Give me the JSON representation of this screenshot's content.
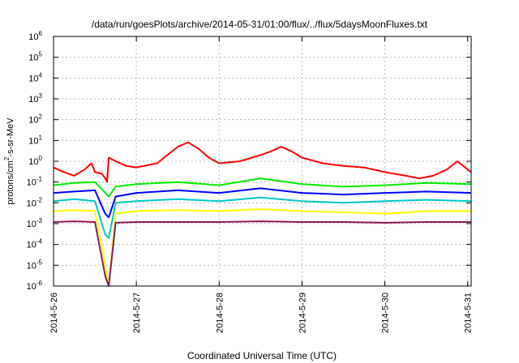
{
  "chart_data": {
    "type": "line",
    "title": "/data/run/goesPlots/archive/2014-05-31/01:00/flux/../flux/5daysMoonFluxes.txt",
    "xlabel": "Coordinated Universal Time (UTC)",
    "ylabel_parts": [
      "protons/cm",
      "2",
      "-s-sr-MeV"
    ],
    "y_scale": "log",
    "ylim": [
      1e-06,
      1000000.0
    ],
    "y_ticks": [
      {
        "base": "10",
        "exp": "-6",
        "value": 1e-06
      },
      {
        "base": "10",
        "exp": "-5",
        "value": 1e-05
      },
      {
        "base": "10",
        "exp": "-4",
        "value": 0.0001
      },
      {
        "base": "10",
        "exp": "-3",
        "value": 0.001
      },
      {
        "base": "10",
        "exp": "-2",
        "value": 0.01
      },
      {
        "base": "10",
        "exp": "-1",
        "value": 0.1
      },
      {
        "base": "10",
        "exp": "0",
        "value": 1
      },
      {
        "base": "10",
        "exp": "1",
        "value": 10
      },
      {
        "base": "10",
        "exp": "2",
        "value": 100
      },
      {
        "base": "10",
        "exp": "3",
        "value": 1000
      },
      {
        "base": "10",
        "exp": "4",
        "value": 10000
      },
      {
        "base": "10",
        "exp": "5",
        "value": 100000
      },
      {
        "base": "10",
        "exp": "6",
        "value": 1000000
      }
    ],
    "x_ticks": [
      "2014-5-26",
      "2014-5-27",
      "2014-5-28",
      "2014-5-29",
      "2014-5-30",
      "2014-5-31"
    ],
    "xlim": [
      "2014-05-26T00:00",
      "2014-05-31T01:00"
    ],
    "grid": true,
    "series": [
      {
        "color": "#ff0000",
        "points": [
          [
            "2014-05-26T00:00",
            0.5
          ],
          [
            "2014-05-26T03:00",
            0.3
          ],
          [
            "2014-05-26T06:00",
            0.2
          ],
          [
            "2014-05-26T09:00",
            0.4
          ],
          [
            "2014-05-26T11:00",
            0.8
          ],
          [
            "2014-05-26T12:00",
            0.3
          ],
          [
            "2014-05-26T14:00",
            0.25
          ],
          [
            "2014-05-26T15:00",
            0.15
          ],
          [
            "2014-05-26T15:30",
            0.1
          ],
          [
            "2014-05-26T16:00",
            1.5
          ],
          [
            "2014-05-26T18:00",
            1.0
          ],
          [
            "2014-05-26T21:00",
            0.6
          ],
          [
            "2014-05-27T00:00",
            0.5
          ],
          [
            "2014-05-27T06:00",
            0.8
          ],
          [
            "2014-05-27T09:00",
            2.0
          ],
          [
            "2014-05-27T12:00",
            5.0
          ],
          [
            "2014-05-27T15:00",
            8.0
          ],
          [
            "2014-05-27T18:00",
            4.0
          ],
          [
            "2014-05-27T21:00",
            1.5
          ],
          [
            "2014-05-28T00:00",
            0.8
          ],
          [
            "2014-05-28T06:00",
            1.0
          ],
          [
            "2014-05-28T12:00",
            2.0
          ],
          [
            "2014-05-28T15:00",
            3.0
          ],
          [
            "2014-05-28T18:00",
            5.0
          ],
          [
            "2014-05-28T21:00",
            3.0
          ],
          [
            "2014-05-29T00:00",
            1.5
          ],
          [
            "2014-05-29T06:00",
            0.8
          ],
          [
            "2014-05-29T12:00",
            0.6
          ],
          [
            "2014-05-29T18:00",
            0.5
          ],
          [
            "2014-05-30T00:00",
            0.3
          ],
          [
            "2014-05-30T06:00",
            0.2
          ],
          [
            "2014-05-30T10:00",
            0.15
          ],
          [
            "2014-05-30T14:00",
            0.2
          ],
          [
            "2014-05-30T18:00",
            0.4
          ],
          [
            "2014-05-30T21:00",
            1.0
          ],
          [
            "2014-05-31T00:00",
            0.4
          ],
          [
            "2014-05-31T01:00",
            0.3
          ]
        ]
      },
      {
        "color": "#00ee00",
        "points": [
          [
            "2014-05-26T00:00",
            0.07
          ],
          [
            "2014-05-26T06:00",
            0.09
          ],
          [
            "2014-05-26T12:00",
            0.1
          ],
          [
            "2014-05-26T15:00",
            0.03
          ],
          [
            "2014-05-26T16:00",
            0.02
          ],
          [
            "2014-05-26T18:00",
            0.06
          ],
          [
            "2014-05-27T00:00",
            0.08
          ],
          [
            "2014-05-27T12:00",
            0.1
          ],
          [
            "2014-05-28T00:00",
            0.07
          ],
          [
            "2014-05-28T12:00",
            0.15
          ],
          [
            "2014-05-29T00:00",
            0.08
          ],
          [
            "2014-05-29T12:00",
            0.06
          ],
          [
            "2014-05-30T00:00",
            0.07
          ],
          [
            "2014-05-30T12:00",
            0.09
          ],
          [
            "2014-05-31T01:00",
            0.08
          ]
        ]
      },
      {
        "color": "#0000ff",
        "points": [
          [
            "2014-05-26T00:00",
            0.03
          ],
          [
            "2014-05-26T06:00",
            0.035
          ],
          [
            "2014-05-26T12:00",
            0.04
          ],
          [
            "2014-05-26T15:00",
            0.003
          ],
          [
            "2014-05-26T16:00",
            0.002
          ],
          [
            "2014-05-26T18:00",
            0.02
          ],
          [
            "2014-05-27T00:00",
            0.03
          ],
          [
            "2014-05-27T12:00",
            0.04
          ],
          [
            "2014-05-28T00:00",
            0.03
          ],
          [
            "2014-05-28T12:00",
            0.05
          ],
          [
            "2014-05-29T00:00",
            0.03
          ],
          [
            "2014-05-29T12:00",
            0.025
          ],
          [
            "2014-05-30T00:00",
            0.03
          ],
          [
            "2014-05-30T12:00",
            0.035
          ],
          [
            "2014-05-31T01:00",
            0.03
          ]
        ]
      },
      {
        "color": "#00c8c8",
        "points": [
          [
            "2014-05-26T00:00",
            0.012
          ],
          [
            "2014-05-26T06:00",
            0.015
          ],
          [
            "2014-05-26T12:00",
            0.012
          ],
          [
            "2014-05-26T15:00",
            0.0003
          ],
          [
            "2014-05-26T16:00",
            0.0002
          ],
          [
            "2014-05-26T18:00",
            0.01
          ],
          [
            "2014-05-27T00:00",
            0.012
          ],
          [
            "2014-05-27T12:00",
            0.015
          ],
          [
            "2014-05-28T00:00",
            0.012
          ],
          [
            "2014-05-28T12:00",
            0.018
          ],
          [
            "2014-05-29T00:00",
            0.012
          ],
          [
            "2014-05-29T12:00",
            0.01
          ],
          [
            "2014-05-30T00:00",
            0.012
          ],
          [
            "2014-05-30T12:00",
            0.014
          ],
          [
            "2014-05-31T01:00",
            0.012
          ]
        ]
      },
      {
        "color": "#ffff00",
        "points": [
          [
            "2014-05-26T00:00",
            0.004
          ],
          [
            "2014-05-26T06:00",
            0.0045
          ],
          [
            "2014-05-26T12:00",
            0.004
          ],
          [
            "2014-05-26T15:00",
            1e-05
          ],
          [
            "2014-05-26T16:00",
            1e-06
          ],
          [
            "2014-05-26T18:00",
            0.003
          ],
          [
            "2014-05-27T00:00",
            0.004
          ],
          [
            "2014-05-27T12:00",
            0.0045
          ],
          [
            "2014-05-28T00:00",
            0.004
          ],
          [
            "2014-05-28T12:00",
            0.005
          ],
          [
            "2014-05-29T00:00",
            0.004
          ],
          [
            "2014-05-29T12:00",
            0.0035
          ],
          [
            "2014-05-30T00:00",
            0.003
          ],
          [
            "2014-05-30T12:00",
            0.004
          ],
          [
            "2014-05-31T01:00",
            0.004
          ]
        ]
      },
      {
        "color": "#8b1a5a",
        "points": [
          [
            "2014-05-26T00:00",
            0.0012
          ],
          [
            "2014-05-26T06:00",
            0.0013
          ],
          [
            "2014-05-26T12:00",
            0.0012
          ],
          [
            "2014-05-26T15:00",
            3e-06
          ],
          [
            "2014-05-26T16:00",
            1e-06
          ],
          [
            "2014-05-26T18:00",
            0.0011
          ],
          [
            "2014-05-27T00:00",
            0.0012
          ],
          [
            "2014-05-27T12:00",
            0.0012
          ],
          [
            "2014-05-28T00:00",
            0.0012
          ],
          [
            "2014-05-28T12:00",
            0.0013
          ],
          [
            "2014-05-29T00:00",
            0.0012
          ],
          [
            "2014-05-29T12:00",
            0.0012
          ],
          [
            "2014-05-30T00:00",
            0.0011
          ],
          [
            "2014-05-30T12:00",
            0.0012
          ],
          [
            "2014-05-31T01:00",
            0.0012
          ]
        ]
      }
    ]
  }
}
